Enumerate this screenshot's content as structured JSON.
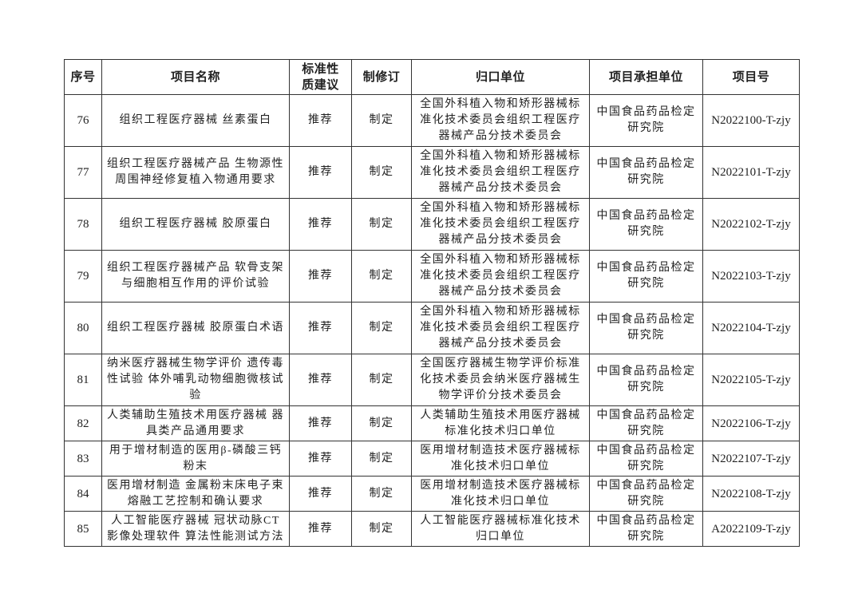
{
  "table": {
    "headers": [
      "序号",
      "项目名称",
      "标准性质建议",
      "制修订",
      "归口单位",
      "项目承担单位",
      "项目号"
    ],
    "rows": [
      {
        "no": "76",
        "name": "组织工程医疗器械 丝素蛋白",
        "nature": "推荐",
        "type": "制定",
        "unit": "全国外科植入物和矫形器械标准化技术委员会组织工程医疗器械产品分技术委员会",
        "org": "中国食品药品检定研究院",
        "code": "N2022100-T-zjy"
      },
      {
        "no": "77",
        "name": "组织工程医疗器械产品 生物源性周围神经修复植入物通用要求",
        "nature": "推荐",
        "type": "制定",
        "unit": "全国外科植入物和矫形器械标准化技术委员会组织工程医疗器械产品分技术委员会",
        "org": "中国食品药品检定研究院",
        "code": "N2022101-T-zjy"
      },
      {
        "no": "78",
        "name": "组织工程医疗器械 胶原蛋白",
        "nature": "推荐",
        "type": "制定",
        "unit": "全国外科植入物和矫形器械标准化技术委员会组织工程医疗器械产品分技术委员会",
        "org": "中国食品药品检定研究院",
        "code": "N2022102-T-zjy"
      },
      {
        "no": "79",
        "name": "组织工程医疗器械产品 软骨支架与细胞相互作用的评价试验",
        "nature": "推荐",
        "type": "制定",
        "unit": "全国外科植入物和矫形器械标准化技术委员会组织工程医疗器械产品分技术委员会",
        "org": "中国食品药品检定研究院",
        "code": "N2022103-T-zjy"
      },
      {
        "no": "80",
        "name": "组织工程医疗器械 胶原蛋白术语",
        "nature": "推荐",
        "type": "制定",
        "unit": "全国外科植入物和矫形器械标准化技术委员会组织工程医疗器械产品分技术委员会",
        "org": "中国食品药品检定研究院",
        "code": "N2022104-T-zjy"
      },
      {
        "no": "81",
        "name": "纳米医疗器械生物学评价 遗传毒性试验 体外哺乳动物细胞微核试验",
        "nature": "推荐",
        "type": "制定",
        "unit": "全国医疗器械生物学评价标准化技术委员会纳米医疗器械生物学评价分技术委员会",
        "org": "中国食品药品检定研究院",
        "code": "N2022105-T-zjy"
      },
      {
        "no": "82",
        "name": "人类辅助生殖技术用医疗器械 器具类产品通用要求",
        "nature": "推荐",
        "type": "制定",
        "unit": "人类辅助生殖技术用医疗器械标准化技术归口单位",
        "org": "中国食品药品检定研究院",
        "code": "N2022106-T-zjy"
      },
      {
        "no": "83",
        "name": "用于增材制造的医用β-磷酸三钙粉末",
        "nature": "推荐",
        "type": "制定",
        "unit": "医用增材制造技术医疗器械标准化技术归口单位",
        "org": "中国食品药品检定研究院",
        "code": "N2022107-T-zjy"
      },
      {
        "no": "84",
        "name": "医用增材制造 金属粉末床电子束熔融工艺控制和确认要求",
        "nature": "推荐",
        "type": "制定",
        "unit": "医用增材制造技术医疗器械标准化技术归口单位",
        "org": "中国食品药品检定研究院",
        "code": "N2022108-T-zjy"
      },
      {
        "no": "85",
        "name": "人工智能医疗器械 冠状动脉CT影像处理软件 算法性能测试方法",
        "nature": "推荐",
        "type": "制定",
        "unit": "人工智能医疗器械标准化技术归口单位",
        "org": "中国食品药品检定研究院",
        "code": "A2022109-T-zjy"
      }
    ]
  }
}
